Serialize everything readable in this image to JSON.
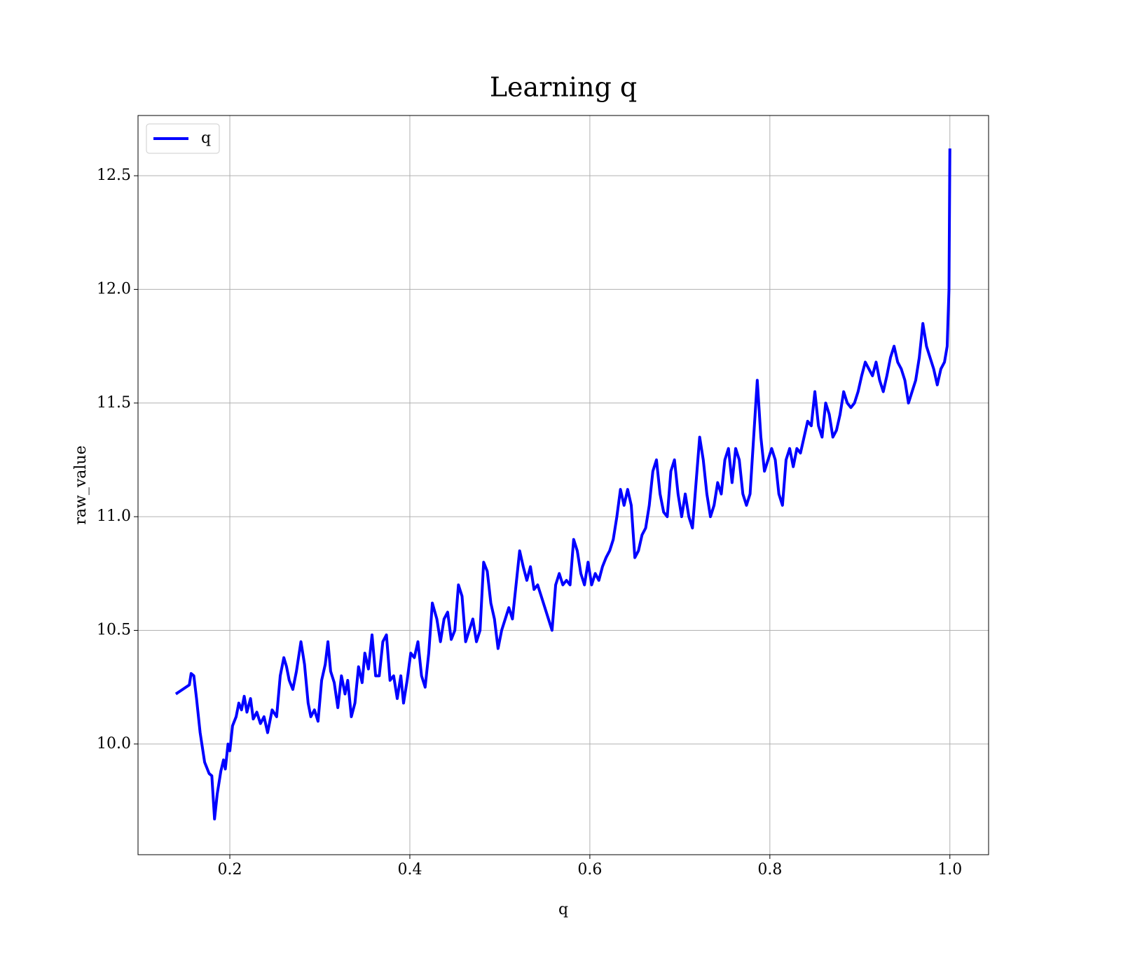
{
  "chart_data": {
    "type": "line",
    "title": "Learning q",
    "xlabel": "q",
    "ylabel": "raw_value",
    "xlim": [
      0.098,
      1.043
    ],
    "ylim": [
      9.513,
      12.765
    ],
    "xticks": [
      0.2,
      0.4,
      0.6,
      0.8,
      {
        "value": 1.0,
        "label": "1.0"
      }
    ],
    "yticks": [
      {
        "value": 10.0,
        "label": "10.0"
      },
      10.5,
      {
        "value": 11.0,
        "label": "11.0"
      },
      11.5,
      {
        "value": 12.0,
        "label": "12.0"
      },
      12.5
    ],
    "grid": true,
    "legend": "upper left",
    "x": [
      0.14,
      0.155,
      0.157,
      0.16,
      0.163,
      0.167,
      0.172,
      0.177,
      0.18,
      0.183,
      0.186,
      0.19,
      0.193,
      0.195,
      0.198,
      0.2,
      0.203,
      0.207,
      0.21,
      0.213,
      0.216,
      0.219,
      0.223,
      0.226,
      0.23,
      0.234,
      0.238,
      0.242,
      0.247,
      0.252,
      0.256,
      0.26,
      0.263,
      0.266,
      0.27,
      0.274,
      0.279,
      0.283,
      0.287,
      0.29,
      0.294,
      0.298,
      0.302,
      0.306,
      0.309,
      0.312,
      0.316,
      0.32,
      0.324,
      0.328,
      0.331,
      0.335,
      0.339,
      0.343,
      0.347,
      0.35,
      0.354,
      0.358,
      0.362,
      0.366,
      0.37,
      0.374,
      0.378,
      0.382,
      0.386,
      0.39,
      0.393,
      0.397,
      0.401,
      0.405,
      0.409,
      0.413,
      0.417,
      0.421,
      0.425,
      0.43,
      0.434,
      0.438,
      0.442,
      0.446,
      0.45,
      0.454,
      0.458,
      0.462,
      0.466,
      0.47,
      0.474,
      0.478,
      0.482,
      0.486,
      0.49,
      0.494,
      0.498,
      0.502,
      0.506,
      0.51,
      0.514,
      0.518,
      0.522,
      0.526,
      0.53,
      0.534,
      0.538,
      0.542,
      0.546,
      0.55,
      0.554,
      0.558,
      0.562,
      0.566,
      0.57,
      0.574,
      0.578,
      0.582,
      0.586,
      0.59,
      0.594,
      0.598,
      0.602,
      0.606,
      0.61,
      0.614,
      0.618,
      0.622,
      0.626,
      0.63,
      0.634,
      0.638,
      0.642,
      0.646,
      0.65,
      0.654,
      0.658,
      0.662,
      0.666,
      0.67,
      0.674,
      0.678,
      0.682,
      0.686,
      0.69,
      0.694,
      0.698,
      0.702,
      0.706,
      0.71,
      0.714,
      0.718,
      0.722,
      0.726,
      0.73,
      0.734,
      0.738,
      0.742,
      0.746,
      0.75,
      0.754,
      0.758,
      0.762,
      0.766,
      0.77,
      0.774,
      0.778,
      0.782,
      0.786,
      0.79,
      0.794,
      0.798,
      0.802,
      0.806,
      0.81,
      0.814,
      0.818,
      0.822,
      0.826,
      0.83,
      0.834,
      0.838,
      0.842,
      0.846,
      0.85,
      0.854,
      0.858,
      0.862,
      0.866,
      0.87,
      0.874,
      0.878,
      0.882,
      0.886,
      0.89,
      0.894,
      0.898,
      0.902,
      0.906,
      0.91,
      0.914,
      0.918,
      0.922,
      0.926,
      0.93,
      0.934,
      0.938,
      0.942,
      0.946,
      0.95,
      0.954,
      0.958,
      0.962,
      0.966,
      0.97,
      0.974,
      0.978,
      0.982,
      0.986,
      0.99,
      0.994,
      0.997,
      0.999,
      1.0
    ],
    "series": [
      {
        "name": "q",
        "color": "#0000ff",
        "values": [
          10.22,
          10.26,
          10.31,
          10.3,
          10.2,
          10.05,
          9.92,
          9.87,
          9.86,
          9.67,
          9.78,
          9.88,
          9.93,
          9.89,
          10.0,
          9.97,
          10.08,
          10.12,
          10.18,
          10.15,
          10.21,
          10.14,
          10.2,
          10.11,
          10.14,
          10.09,
          10.12,
          10.05,
          10.15,
          10.12,
          10.3,
          10.38,
          10.34,
          10.28,
          10.24,
          10.32,
          10.45,
          10.35,
          10.18,
          10.12,
          10.15,
          10.1,
          10.28,
          10.35,
          10.45,
          10.32,
          10.27,
          10.16,
          10.3,
          10.22,
          10.28,
          10.12,
          10.18,
          10.34,
          10.27,
          10.4,
          10.33,
          10.48,
          10.3,
          10.3,
          10.45,
          10.48,
          10.28,
          10.3,
          10.2,
          10.3,
          10.18,
          10.28,
          10.4,
          10.38,
          10.45,
          10.3,
          10.25,
          10.4,
          10.62,
          10.55,
          10.45,
          10.55,
          10.58,
          10.46,
          10.5,
          10.7,
          10.65,
          10.45,
          10.5,
          10.55,
          10.45,
          10.5,
          10.8,
          10.76,
          10.62,
          10.55,
          10.42,
          10.5,
          10.55,
          10.6,
          10.55,
          10.7,
          10.85,
          10.78,
          10.72,
          10.78,
          10.68,
          10.7,
          10.65,
          10.6,
          10.55,
          10.5,
          10.7,
          10.75,
          10.7,
          10.72,
          10.7,
          10.9,
          10.85,
          10.75,
          10.7,
          10.8,
          10.7,
          10.75,
          10.72,
          10.78,
          10.82,
          10.85,
          10.9,
          11.0,
          11.12,
          11.05,
          11.12,
          11.05,
          10.82,
          10.85,
          10.92,
          10.95,
          11.05,
          11.2,
          11.25,
          11.1,
          11.02,
          11.0,
          11.2,
          11.25,
          11.1,
          11.0,
          11.1,
          11.0,
          10.95,
          11.15,
          11.35,
          11.25,
          11.1,
          11.0,
          11.05,
          11.15,
          11.1,
          11.25,
          11.3,
          11.15,
          11.3,
          11.25,
          11.1,
          11.05,
          11.1,
          11.35,
          11.6,
          11.35,
          11.2,
          11.25,
          11.3,
          11.25,
          11.1,
          11.05,
          11.25,
          11.3,
          11.22,
          11.3,
          11.28,
          11.35,
          11.42,
          11.4,
          11.55,
          11.4,
          11.35,
          11.5,
          11.45,
          11.35,
          11.38,
          11.45,
          11.55,
          11.5,
          11.48,
          11.5,
          11.55,
          11.62,
          11.68,
          11.65,
          11.62,
          11.68,
          11.6,
          11.55,
          11.62,
          11.7,
          11.75,
          11.68,
          11.65,
          11.6,
          11.5,
          11.55,
          11.6,
          11.7,
          11.85,
          11.75,
          11.7,
          11.65,
          11.58,
          11.65,
          11.68,
          11.75,
          12.0,
          12.62
        ]
      }
    ]
  }
}
